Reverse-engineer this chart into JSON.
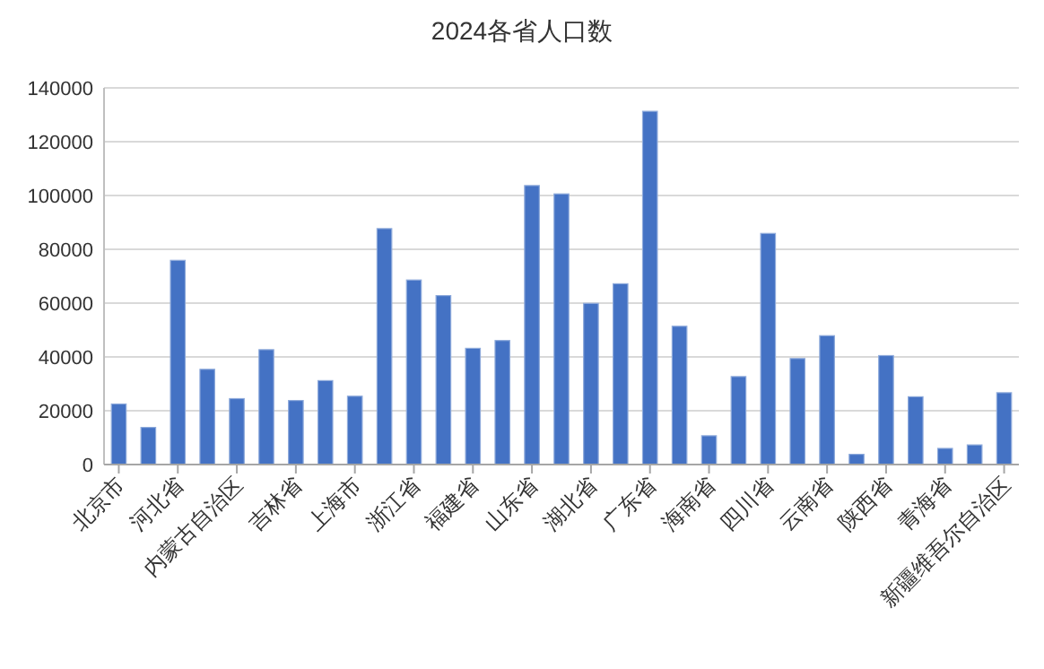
{
  "chart_data": {
    "type": "bar",
    "title": "2024各省人口数",
    "categories": [
      "北京市",
      null,
      "河北省",
      null,
      "内蒙古自治区",
      null,
      "吉林省",
      null,
      "上海市",
      null,
      "浙江省",
      null,
      "福建省",
      null,
      "山东省",
      null,
      "湖北省",
      null,
      "广东省",
      null,
      "海南省",
      null,
      "四川省",
      null,
      "云南省",
      null,
      "陕西省",
      null,
      "青海省",
      null,
      "新疆维吾尔自治区"
    ],
    "series": [
      {
        "color": "#4472c4",
        "values": [
          22500,
          13800,
          75900,
          35400,
          24500,
          42700,
          23800,
          31200,
          25400,
          87700,
          68600,
          62800,
          43200,
          46100,
          103700,
          100600,
          59900,
          67200,
          131300,
          51400,
          10700,
          32700,
          85900,
          39400,
          47900,
          3800,
          40500,
          25200,
          6000,
          7300,
          26700
        ]
      }
    ],
    "ylim": [
      0,
      140000
    ],
    "yticks": [
      0,
      20000,
      40000,
      60000,
      80000,
      100000,
      120000,
      140000
    ],
    "grid": "y"
  }
}
